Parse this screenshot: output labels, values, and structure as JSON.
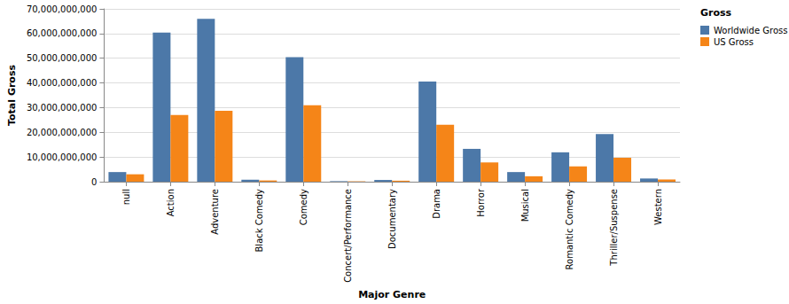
{
  "chart_data": {
    "type": "bar",
    "x_label": "Major Genre",
    "y_label": "Total Gross",
    "legend_title": "Gross",
    "categories": [
      "null",
      "Action",
      "Adventure",
      "Black Comedy",
      "Comedy",
      "Concert/Performance",
      "Documentary",
      "Drama",
      "Horror",
      "Musical",
      "Romantic Comedy",
      "Thriller/Suspense",
      "Western"
    ],
    "series": [
      {
        "name": "Worldwide Gross",
        "color": "#4c78a8",
        "values": [
          3900000000,
          60400000000,
          66000000000,
          800000000,
          50400000000,
          200000000,
          700000000,
          40600000000,
          13300000000,
          3900000000,
          11900000000,
          19300000000,
          1300000000
        ]
      },
      {
        "name": "US Gross",
        "color": "#f58518",
        "values": [
          3000000000,
          27000000000,
          28700000000,
          500000000,
          31000000000,
          150000000,
          400000000,
          23100000000,
          7800000000,
          2200000000,
          6200000000,
          9700000000,
          900000000
        ]
      }
    ],
    "ylim": [
      0,
      70000000000
    ],
    "yticks": [
      {
        "value": 0,
        "label": "0"
      },
      {
        "value": 10000000000,
        "label": "10,000,000,000"
      },
      {
        "value": 20000000000,
        "label": "20,000,000,000"
      },
      {
        "value": 30000000000,
        "label": "30,000,000,000"
      },
      {
        "value": 40000000000,
        "label": "40,000,000,000"
      },
      {
        "value": 50000000000,
        "label": "50,000,000,000"
      },
      {
        "value": 60000000000,
        "label": "60,000,000,000"
      },
      {
        "value": 70000000000,
        "label": "70,000,000,000"
      }
    ],
    "grid": true,
    "legend": "top-right"
  }
}
